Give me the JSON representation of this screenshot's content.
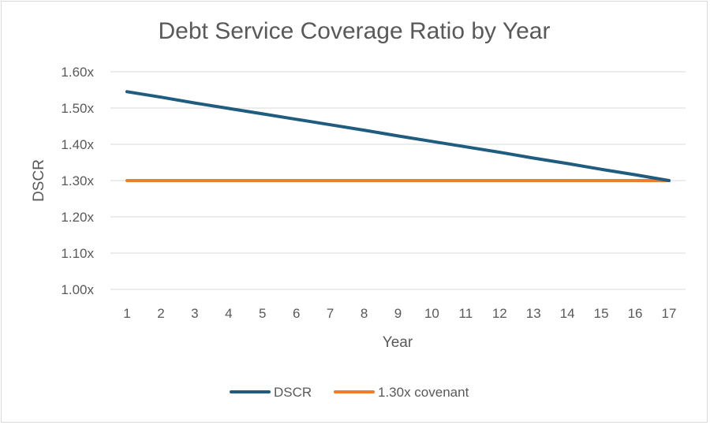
{
  "chart_data": {
    "type": "line",
    "title": "Debt Service Coverage Ratio by Year",
    "xlabel": "Year",
    "ylabel": "DSCR",
    "x": [
      1,
      2,
      3,
      4,
      5,
      6,
      7,
      8,
      9,
      10,
      11,
      12,
      13,
      14,
      15,
      16,
      17
    ],
    "x_tick_labels": [
      "1",
      "2",
      "3",
      "4",
      "5",
      "6",
      "7",
      "8",
      "9",
      "10",
      "11",
      "12",
      "13",
      "14",
      "15",
      "16",
      "17"
    ],
    "ylim": [
      1.0,
      1.6
    ],
    "y_ticks": [
      1.0,
      1.1,
      1.2,
      1.3,
      1.4,
      1.5,
      1.6
    ],
    "y_tick_labels": [
      "1.00x",
      "1.10x",
      "1.20x",
      "1.30x",
      "1.40x",
      "1.50x",
      "1.60x"
    ],
    "grid": "horizontal",
    "legend_position": "bottom",
    "series": [
      {
        "name": "DSCR",
        "color": "#1f5c7f",
        "values": [
          1.545,
          1.53,
          1.514,
          1.499,
          1.484,
          1.469,
          1.454,
          1.439,
          1.423,
          1.408,
          1.393,
          1.378,
          1.362,
          1.347,
          1.331,
          1.316,
          1.3
        ]
      },
      {
        "name": "1.30x covenant",
        "color": "#ed7d31",
        "values": [
          1.3,
          1.3,
          1.3,
          1.3,
          1.3,
          1.3,
          1.3,
          1.3,
          1.3,
          1.3,
          1.3,
          1.3,
          1.3,
          1.3,
          1.3,
          1.3,
          1.3
        ]
      }
    ]
  }
}
